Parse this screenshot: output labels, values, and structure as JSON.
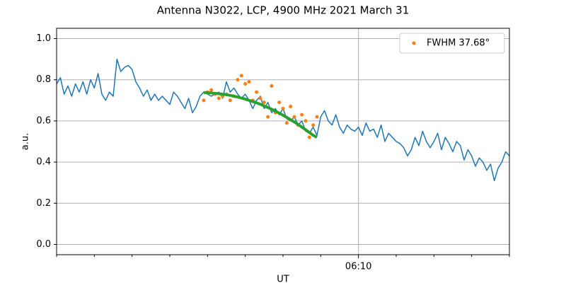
{
  "chart_data": {
    "type": "line",
    "title": "Antenna N3022, LCP, 4900 MHz 2021 March 31",
    "x_label": "UT",
    "y_label": "a.u.",
    "xlim": [
      362,
      374
    ],
    "ylim": [
      -0.05,
      1.05
    ],
    "xticks": [
      {
        "value": 370,
        "label": "06:10"
      }
    ],
    "minor_xticks": [
      362,
      363,
      364,
      365,
      366,
      367,
      368,
      369,
      371,
      372,
      373,
      374
    ],
    "yticks": [
      {
        "value": 0,
        "label": "0.0"
      },
      {
        "value": 0.2,
        "label": "0.2"
      },
      {
        "value": 0.4,
        "label": "0.4"
      },
      {
        "value": 0.6,
        "label": "0.6"
      },
      {
        "value": 0.8,
        "label": "0.8"
      },
      {
        "value": 1,
        "label": "1.0"
      }
    ],
    "grid": true,
    "legend": "upper right",
    "series": [
      {
        "color": "#1f77b4",
        "style": "line",
        "x": [
          362.0,
          362.1,
          362.2,
          362.3,
          362.4,
          362.5,
          362.6,
          362.7,
          362.8,
          362.9,
          363.0,
          363.1,
          363.2,
          363.3,
          363.4,
          363.5,
          363.6,
          363.7,
          363.8,
          363.9,
          364.0,
          364.1,
          364.2,
          364.3,
          364.4,
          364.5,
          364.6,
          364.7,
          364.8,
          364.9,
          365.0,
          365.1,
          365.2,
          365.3,
          365.4,
          365.5,
          365.6,
          365.7,
          365.8,
          365.9,
          366.0,
          366.1,
          366.2,
          366.3,
          366.4,
          366.5,
          366.6,
          366.7,
          366.8,
          366.9,
          367.0,
          367.1,
          367.2,
          367.3,
          367.4,
          367.5,
          367.6,
          367.7,
          367.8,
          367.9,
          368.0,
          368.1,
          368.2,
          368.3,
          368.4,
          368.5,
          368.6,
          368.7,
          368.8,
          368.9,
          369.0,
          369.1,
          369.2,
          369.3,
          369.4,
          369.5,
          369.6,
          369.7,
          369.8,
          369.9,
          370.0,
          370.1,
          370.2,
          370.3,
          370.4,
          370.5,
          370.6,
          370.7,
          370.8,
          370.9,
          371.0,
          371.1,
          371.2,
          371.3,
          371.4,
          371.5,
          371.6,
          371.7,
          371.8,
          371.9,
          372.0,
          372.1,
          372.2,
          372.3,
          372.4,
          372.5,
          372.6,
          372.7,
          372.8,
          372.9,
          373.0,
          373.1,
          373.2,
          373.3,
          373.4,
          373.5,
          373.6,
          373.7,
          373.8,
          373.9,
          374.0
        ],
        "values": [
          0.78,
          0.81,
          0.73,
          0.77,
          0.72,
          0.78,
          0.74,
          0.79,
          0.73,
          0.8,
          0.76,
          0.83,
          0.73,
          0.7,
          0.74,
          0.72,
          0.9,
          0.84,
          0.86,
          0.87,
          0.85,
          0.79,
          0.76,
          0.72,
          0.75,
          0.7,
          0.73,
          0.7,
          0.72,
          0.7,
          0.68,
          0.74,
          0.72,
          0.69,
          0.66,
          0.71,
          0.64,
          0.67,
          0.72,
          0.74,
          0.73,
          0.72,
          0.73,
          0.74,
          0.71,
          0.79,
          0.74,
          0.76,
          0.73,
          0.71,
          0.73,
          0.7,
          0.66,
          0.7,
          0.72,
          0.66,
          0.69,
          0.64,
          0.66,
          0.63,
          0.66,
          0.61,
          0.6,
          0.62,
          0.58,
          0.6,
          0.55,
          0.54,
          0.57,
          0.53,
          0.62,
          0.65,
          0.6,
          0.58,
          0.63,
          0.57,
          0.54,
          0.58,
          0.56,
          0.55,
          0.57,
          0.53,
          0.59,
          0.55,
          0.56,
          0.52,
          0.58,
          0.5,
          0.54,
          0.52,
          0.5,
          0.49,
          0.47,
          0.43,
          0.46,
          0.52,
          0.48,
          0.55,
          0.5,
          0.47,
          0.5,
          0.54,
          0.46,
          0.52,
          0.49,
          0.45,
          0.5,
          0.48,
          0.41,
          0.46,
          0.43,
          0.38,
          0.42,
          0.4,
          0.36,
          0.39,
          0.31,
          0.37,
          0.4,
          0.45,
          0.43
        ]
      },
      {
        "name": "FWHM 37.68°",
        "color": "#ff7f0e",
        "style": "scatter",
        "x": [
          365.9,
          366.0,
          366.1,
          366.2,
          366.3,
          366.4,
          366.5,
          366.6,
          366.7,
          366.8,
          366.9,
          367.0,
          367.1,
          367.2,
          367.3,
          367.4,
          367.5,
          367.6,
          367.7,
          367.8,
          367.9,
          368.0,
          368.1,
          368.2,
          368.3,
          368.4,
          368.5,
          368.6,
          368.7,
          368.8,
          368.9
        ],
        "values": [
          0.7,
          0.74,
          0.75,
          0.73,
          0.71,
          0.72,
          0.73,
          0.7,
          0.72,
          0.8,
          0.82,
          0.78,
          0.79,
          0.7,
          0.74,
          0.71,
          0.69,
          0.62,
          0.77,
          0.64,
          0.69,
          0.66,
          0.59,
          0.67,
          0.62,
          0.58,
          0.63,
          0.6,
          0.52,
          0.58,
          0.62
        ]
      },
      {
        "color": "#2ca02c",
        "style": "fit",
        "x": [
          365.9,
          366.0,
          366.1,
          366.2,
          366.3,
          366.4,
          366.5,
          366.6,
          366.7,
          366.8,
          366.9,
          367.0,
          367.1,
          367.2,
          367.3,
          367.4,
          367.5,
          367.6,
          367.7,
          367.8,
          367.9,
          368.0,
          368.1,
          368.2,
          368.3,
          368.4,
          368.5,
          368.6,
          368.7,
          368.8,
          368.9
        ],
        "values": [
          0.738,
          0.737,
          0.736,
          0.734,
          0.732,
          0.73,
          0.727,
          0.724,
          0.72,
          0.716,
          0.711,
          0.706,
          0.7,
          0.694,
          0.688,
          0.681,
          0.673,
          0.665,
          0.657,
          0.648,
          0.638,
          0.628,
          0.617,
          0.606,
          0.595,
          0.583,
          0.57,
          0.557,
          0.544,
          0.53,
          0.52
        ]
      }
    ]
  }
}
